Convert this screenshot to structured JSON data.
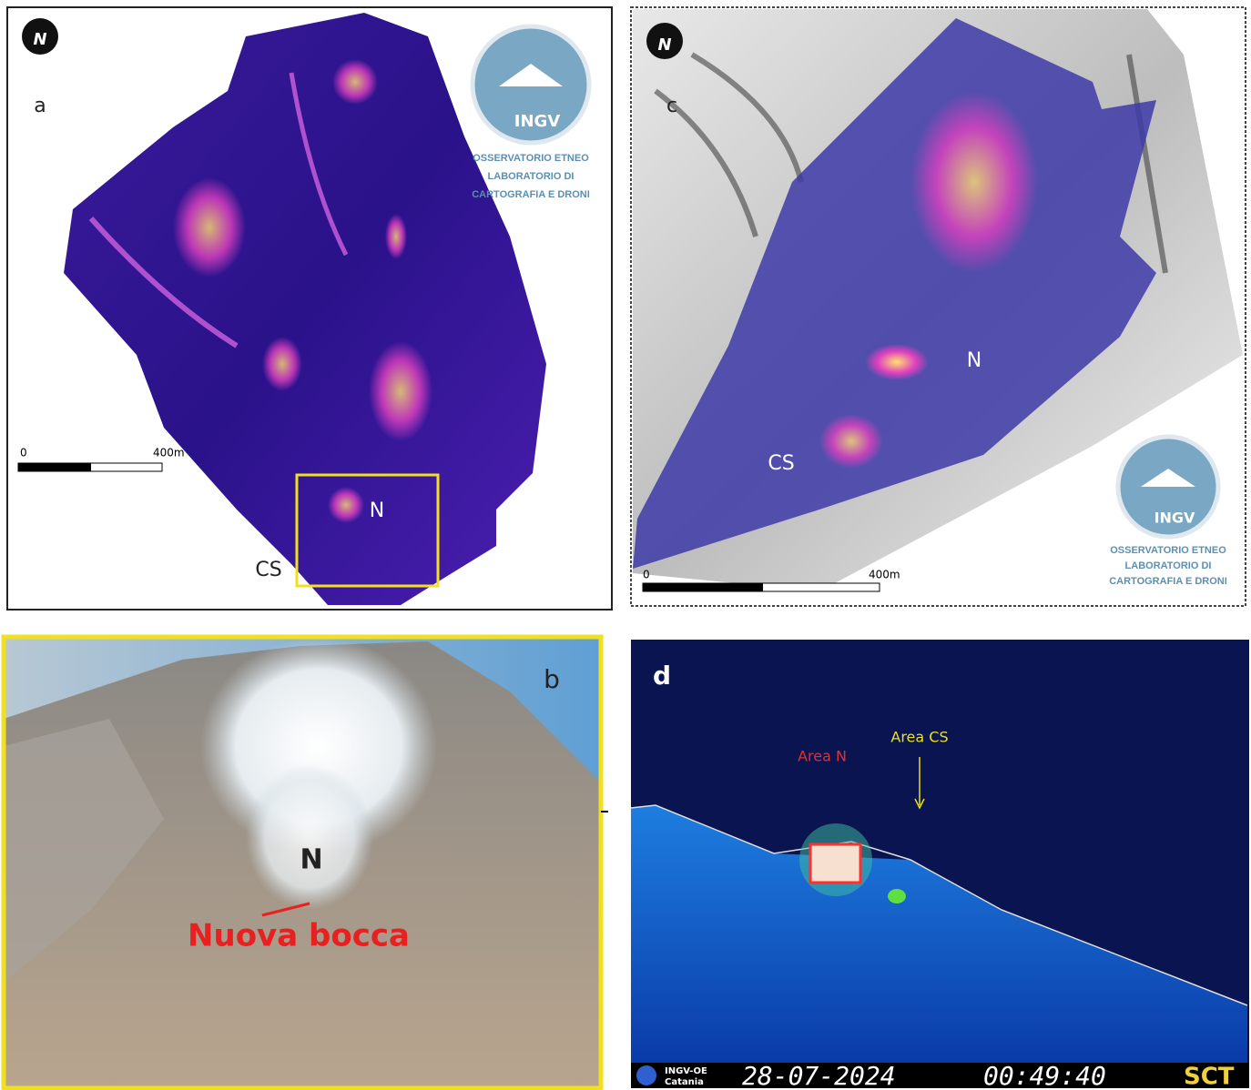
{
  "panel_a": {
    "label": "a",
    "north": "N",
    "logo": {
      "name": "INGV",
      "lines": [
        "OSSERVATORIO ETNEO",
        "LABORATORIO DI",
        "CARTOGRAFIA E DRONI"
      ]
    },
    "scale": {
      "start": "0",
      "end": "400m"
    },
    "markers": [
      "N",
      "CS"
    ]
  },
  "panel_c": {
    "label": "c",
    "north": "N",
    "logo": {
      "name": "INGV",
      "lines": [
        "OSSERVATORIO ETNEO",
        "LABORATORIO DI",
        "CARTOGRAFIA E DRONI"
      ]
    },
    "scale": {
      "start": "0",
      "end": "400m"
    },
    "markers": [
      "N",
      "CS"
    ]
  },
  "panel_b": {
    "label": "b",
    "marker": "N",
    "annotation": "Nuova bocca"
  },
  "panel_d": {
    "label": "d",
    "annotations": [
      "Area N",
      "Area CS"
    ],
    "footer": {
      "org": "INGV-OE",
      "city": "Catania",
      "date": "28-07-2024",
      "time": "00:49:40",
      "station": "SCT"
    }
  }
}
